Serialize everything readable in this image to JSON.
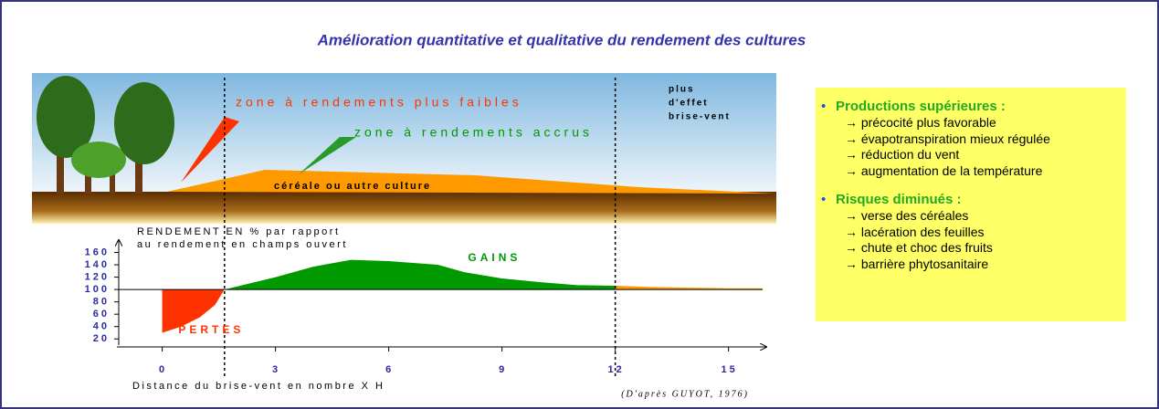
{
  "chart_data": {
    "type": "area",
    "title": "Amélioration quantitative et qualitative du rendement des cultures",
    "y_label_lines": [
      "RENDEMENT EN % par rapport",
      "au rendement en champs ouvert"
    ],
    "x_label": "Distance du brise-vent en nombre X H",
    "source": "(D'après GUYOT, 1976)",
    "xlim": [
      -1.2,
      16
    ],
    "ylim": [
      10,
      180
    ],
    "xticks": [
      0,
      3,
      6,
      9,
      12,
      15
    ],
    "yticks": [
      20,
      40,
      60,
      80,
      100,
      120,
      140,
      160
    ],
    "baseline": 100,
    "vlines": [
      1.65,
      12
    ],
    "series": [
      {
        "name": "PERTES",
        "color": "#ff3300",
        "x": [
          0,
          0.5,
          1,
          1.4,
          1.65
        ],
        "values": [
          30,
          40,
          55,
          75,
          100
        ]
      },
      {
        "name": "GAINS",
        "color": "#009900",
        "x": [
          1.65,
          3,
          4,
          5,
          6,
          7.3,
          8,
          9,
          10,
          11,
          12
        ],
        "values": [
          100,
          120,
          137,
          148,
          146,
          140,
          128,
          118,
          112,
          107,
          106
        ]
      },
      {
        "color": "#ff9900",
        "x": [
          12,
          13,
          14,
          15,
          15.9
        ],
        "values": [
          106,
          104,
          103,
          102,
          102
        ]
      }
    ],
    "illustration": {
      "zone_low": "zone à rendements plus faibles",
      "zone_high": "zone à rendements accrus",
      "no_effect": [
        "plus",
        "d'effet",
        "brise-vent"
      ],
      "crop": "céréale ou autre culture"
    }
  },
  "side_box": {
    "sections": [
      {
        "heading": "Productions supérieures :",
        "items": [
          "→ précocité plus favorable",
          "→ évapotranspiration mieux régulée",
          "→ réduction du vent",
          "→ augmentation de la température"
        ]
      },
      {
        "heading": "Risques diminués :",
        "items": [
          "→ verse des céréales",
          "→ lacération des feuilles",
          "→ chute et choc des fruits",
          "→ barrière phytosanitaire"
        ]
      }
    ]
  }
}
